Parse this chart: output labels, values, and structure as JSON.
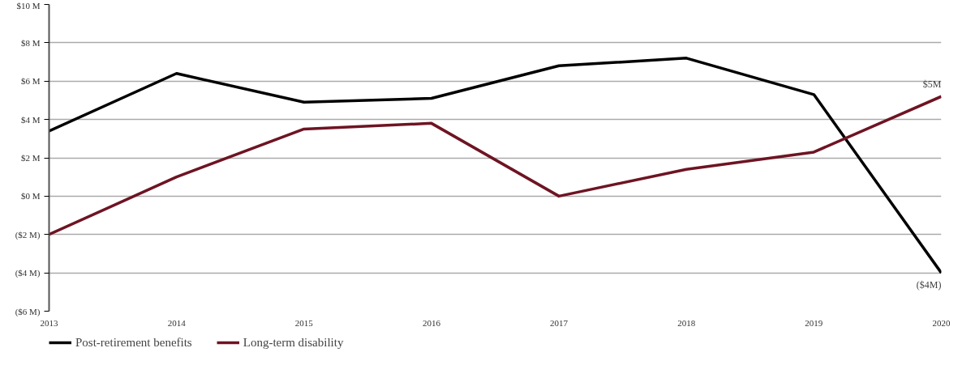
{
  "chart_data": {
    "type": "line",
    "x": [
      2013,
      2014,
      2015,
      2016,
      2017,
      2018,
      2019,
      2020
    ],
    "series": [
      {
        "name": "Post-retirement benefits",
        "color": "#000000",
        "values": [
          3.4,
          6.4,
          4.9,
          5.1,
          6.8,
          7.2,
          5.3,
          -4
        ],
        "value_labels": [
          null,
          null,
          null,
          null,
          null,
          null,
          null,
          "($4M)"
        ]
      },
      {
        "name": "Long-term disability",
        "color": "#6e1423",
        "values": [
          -2.0,
          1.0,
          3.5,
          3.8,
          0.0,
          1.4,
          2.3,
          5.2
        ],
        "value_labels": [
          null,
          null,
          null,
          null,
          null,
          null,
          null,
          "$5M"
        ]
      }
    ],
    "xlim": [
      2013,
      2020
    ],
    "xticks": [
      2013,
      2014,
      2015,
      2016,
      2017,
      2018,
      2019,
      2020
    ],
    "ylim": [
      -6,
      10
    ],
    "yticks": [
      {
        "value": -6,
        "label": "($6 M)"
      },
      {
        "value": -4,
        "label": "($4 M)"
      },
      {
        "value": -2,
        "label": "($2 M)"
      },
      {
        "value": 0,
        "label": "$0 M"
      },
      {
        "value": 2,
        "label": "$2 M"
      },
      {
        "value": 4,
        "label": "$4 M"
      },
      {
        "value": 6,
        "label": "$6 M"
      },
      {
        "value": 8,
        "label": "$8 M"
      },
      {
        "value": 10,
        "label": "$10 M"
      }
    ],
    "grid": "y",
    "legend": "bottom left",
    "marker": "none",
    "line_style": "solid"
  }
}
